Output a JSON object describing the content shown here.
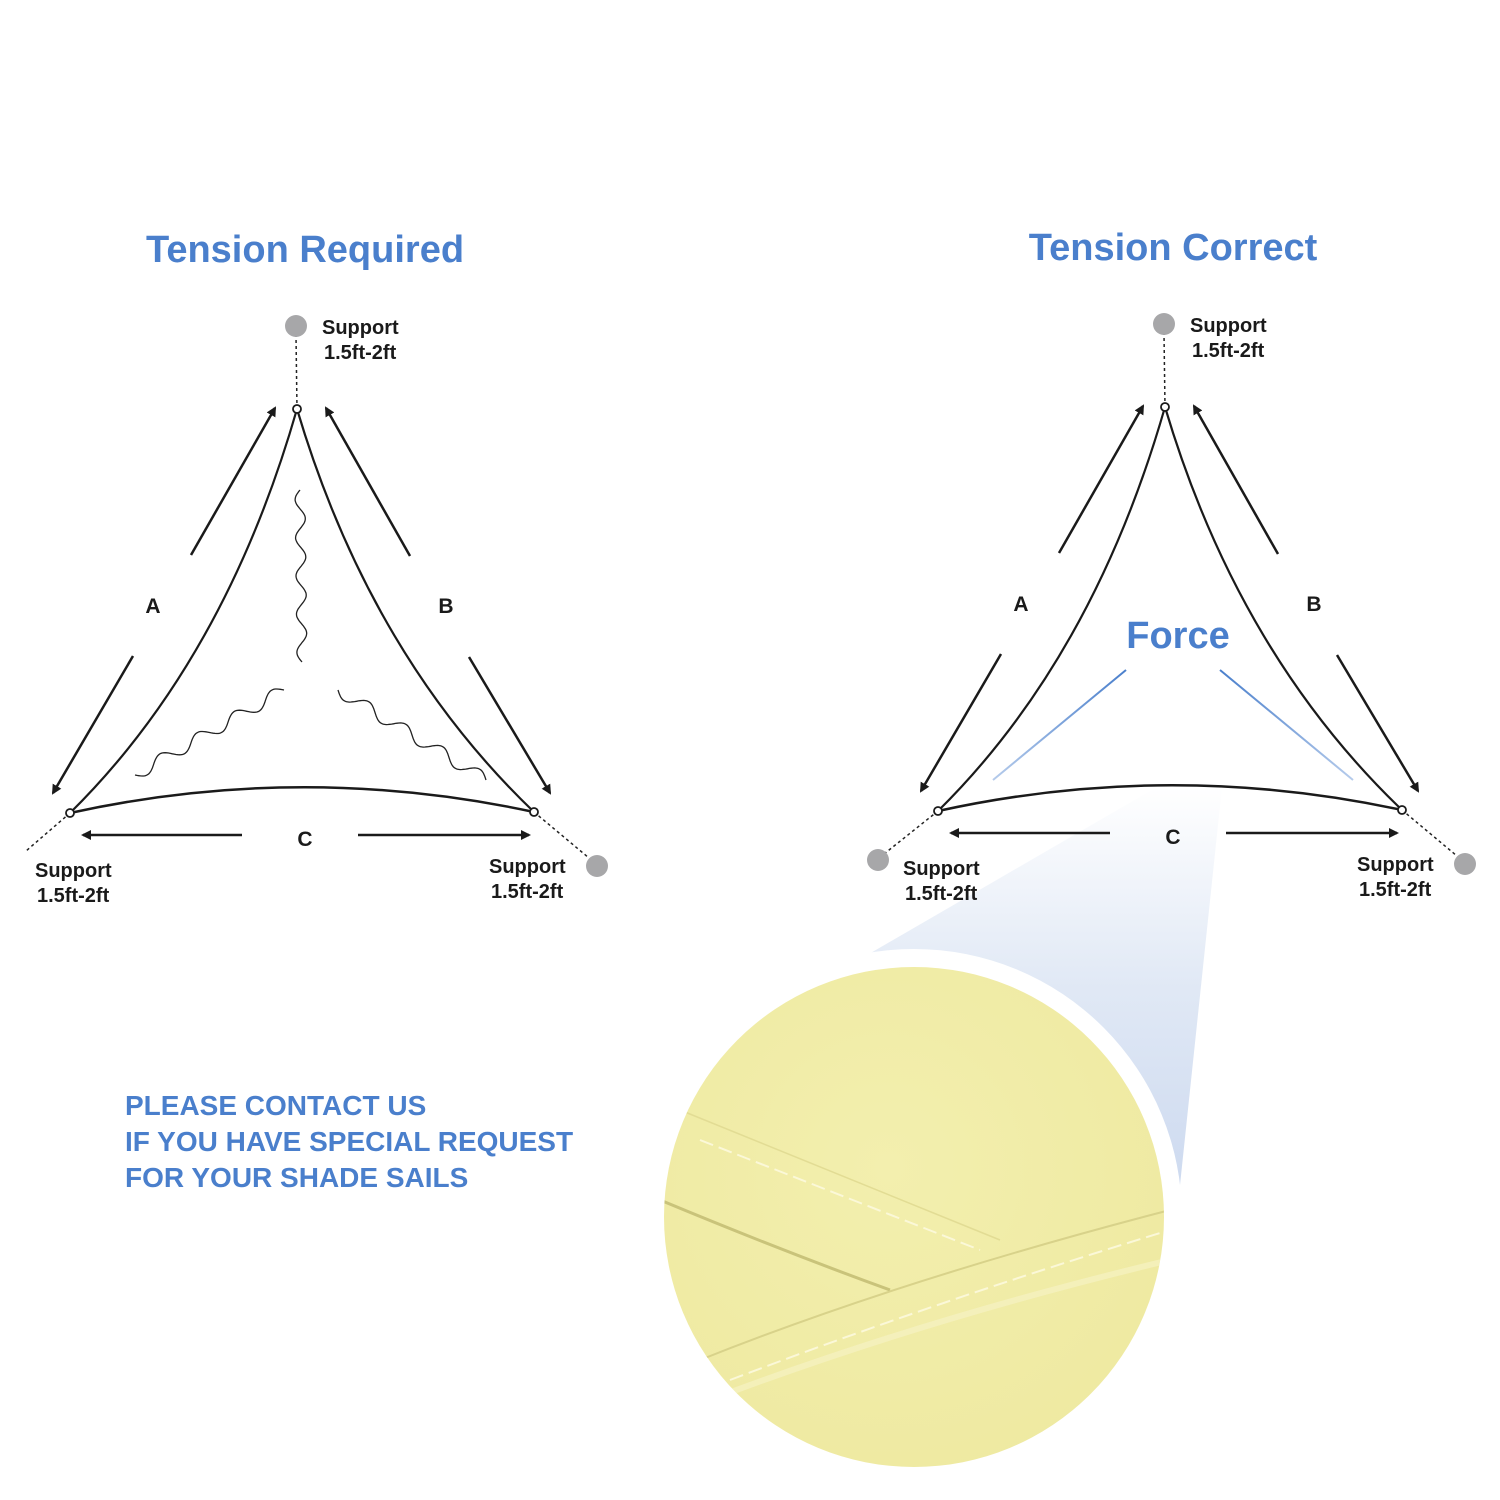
{
  "left_diagram": {
    "title": "Tension Required",
    "sides": [
      "A",
      "B",
      "C"
    ],
    "supports": [
      {
        "line1": "Support",
        "line2": "1.5ft-2ft"
      },
      {
        "line1": "Support",
        "line2": "1.5ft-2ft"
      },
      {
        "line1": "Support",
        "line2": "1.5ft-2ft"
      }
    ]
  },
  "right_diagram": {
    "title": "Tension Correct",
    "force_label": "Force",
    "sides": [
      "A",
      "B",
      "C"
    ],
    "supports": [
      {
        "line1": "Support",
        "line2": "1.5ft-2ft"
      },
      {
        "line1": "Support",
        "line2": "1.5ft-2ft"
      },
      {
        "line1": "Support",
        "line2": "1.5ft-2ft"
      }
    ]
  },
  "contact": {
    "lines": [
      "PLEASE CONTACT US",
      "IF YOU HAVE SPECIAL REQUEST",
      "FOR YOUR SHADE SAILS"
    ]
  },
  "colors": {
    "accent": "#4a7fcc",
    "support": "#a7a7a9",
    "fabric": "#f0eca6",
    "ink": "#1a1a1a"
  }
}
